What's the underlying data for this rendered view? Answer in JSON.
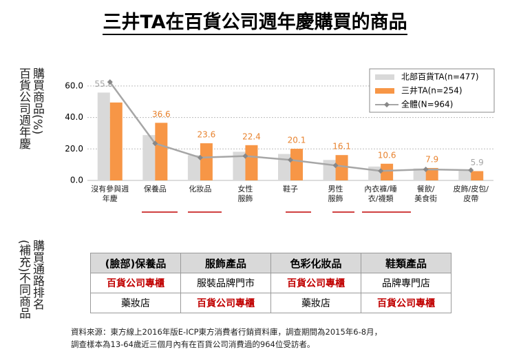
{
  "title": "三井TA在百貨公司週年慶購買的商品",
  "side_label_1": [
    "購買商品(%)",
    "百貨公司週年慶"
  ],
  "side_label_2": [
    "購買通路排名",
    "(補充)不同商品"
  ],
  "chart_data": {
    "type": "bar",
    "categories": [
      "沒有參與週\n年慶",
      "保養品",
      "化妝品",
      "女性\n服飾",
      "鞋子",
      "男性\n服飾",
      "內衣褲/睡\n衣/襪類",
      "餐飲/\n美食街",
      "皮飾/皮包/\n皮帶"
    ],
    "series": [
      {
        "name": "北部百貨TA(n=477)",
        "color": "#d9d9d9",
        "values": [
          55.8,
          28.8,
          16,
          18.2,
          16.8,
          13,
          8.8,
          7.6,
          7
        ],
        "value_labels": [
          "55.8",
          null,
          null,
          null,
          null,
          null,
          null,
          null,
          null
        ]
      },
      {
        "name": "三井TA(n=254)",
        "color": "#f79646",
        "values": [
          49.5,
          36.6,
          23.6,
          22.4,
          20.1,
          16.1,
          10.6,
          7.9,
          5.9
        ],
        "value_labels": [
          null,
          "36.6",
          "23.6",
          "22.4",
          "20.1",
          "16.1",
          "10.6",
          "7.9",
          "5.9"
        ]
      },
      {
        "name": "全體(N=964)",
        "color": "#a6a6a6",
        "type": "line",
        "values": [
          62.5,
          23.5,
          14.5,
          15.5,
          13,
          9.5,
          6,
          7,
          6.5
        ]
      }
    ],
    "ylim": [
      0,
      70
    ],
    "yticks": [
      {
        "value": 0,
        "label": "0.0"
      },
      {
        "value": 20,
        "label": "20.0"
      },
      {
        "value": 40,
        "label": "40.0"
      },
      {
        "value": 60,
        "label": "60.0"
      }
    ],
    "grid": true,
    "legend": "top-right"
  },
  "table": {
    "header": [
      "(臉部)保養品",
      "服飾產品",
      "色彩化妝品",
      "鞋類產品"
    ],
    "rows": [
      [
        "百貨公司專櫃",
        "服裝品牌門市",
        "百貨公司專櫃",
        "品牌專門店"
      ],
      [
        "藥妝店",
        "百貨公司專櫃",
        "藥妝店",
        "百貨公司專櫃"
      ]
    ]
  },
  "source": [
    "資料來源：東方線上2016年版E-ICP東方消費者行銷資料庫，調查期間為2015年6-8月，",
    "調查樣本為13-64歲近三個月內有在百貨公司消費過的964位受訪者。"
  ]
}
